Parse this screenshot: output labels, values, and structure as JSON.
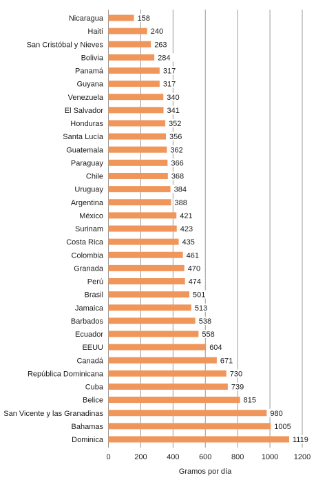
{
  "chart_data": {
    "type": "bar",
    "orientation": "horizontal",
    "categories": [
      "Nicaragua",
      "Haití",
      "San Cristóbal y Nieves",
      "Bolivia",
      "Panamá",
      "Guyana",
      "Venezuela",
      "El Salvador",
      "Honduras",
      "Santa Lucía",
      "Guatemala",
      "Paraguay",
      "Chile",
      "Uruguay",
      "Argentina",
      "México",
      "Surinam",
      "Costa Rica",
      "Colombia",
      "Granada",
      "Perú",
      "Brasil",
      "Jamaica",
      "Barbados",
      "Ecuador",
      "EEUU",
      "Canadá",
      "República Dominicana",
      "Cuba",
      "Belice",
      "San Vicente y las Granadinas",
      "Bahamas",
      "Dominica"
    ],
    "values": [
      158,
      240,
      263,
      284,
      317,
      317,
      340,
      341,
      352,
      356,
      362,
      366,
      368,
      384,
      388,
      421,
      423,
      435,
      461,
      470,
      474,
      501,
      513,
      538,
      558,
      604,
      671,
      730,
      739,
      815,
      980,
      1005,
      1119
    ],
    "xlabel": "Gramos por día",
    "xlim": [
      0,
      1200
    ],
    "xticks": [
      0,
      200,
      400,
      600,
      800,
      1000,
      1200
    ],
    "grid": "vertical",
    "bar_color": "#F0965A",
    "grid_color": "#9A9A9A"
  }
}
